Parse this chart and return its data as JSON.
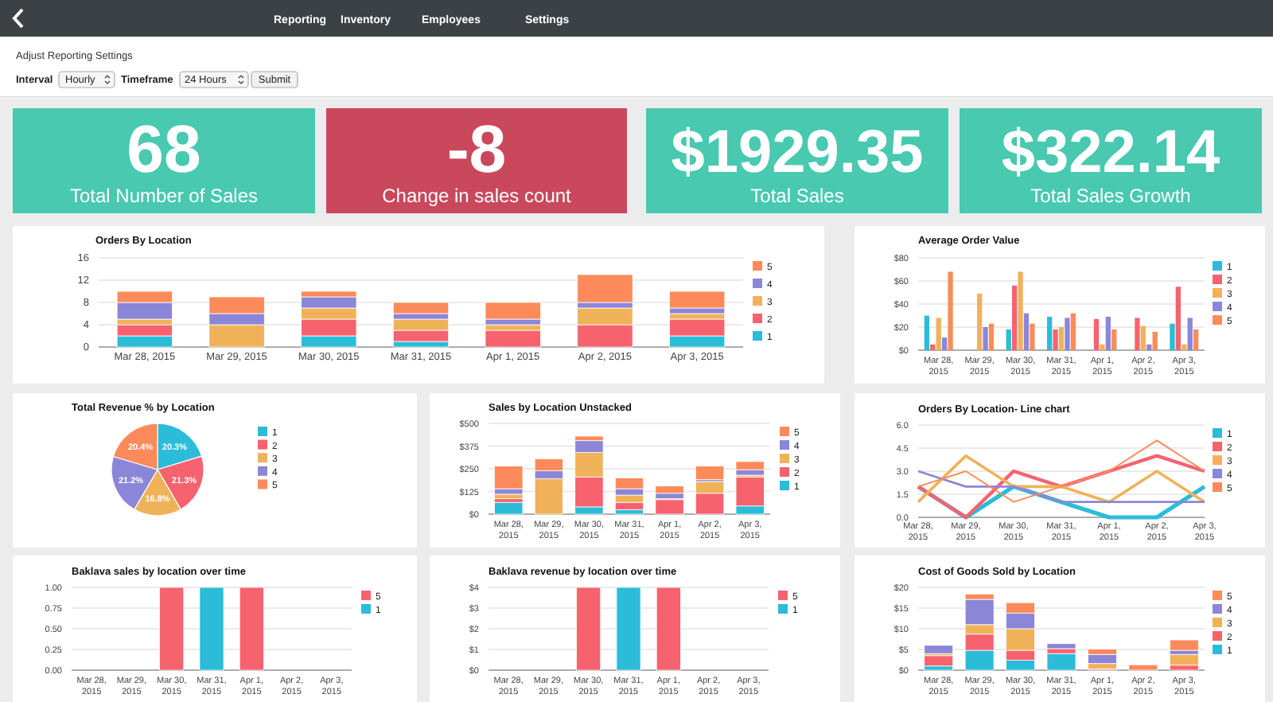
{
  "chart_data": [
    {
      "type": "other",
      "annotations": [
        "Reporting",
        "Inventory",
        "Employees",
        "Settings",
        "Adjust Reporting Settings",
        "Interval",
        "Hourly",
        "Timeframe",
        "24 Hours",
        "Submit"
      ]
    },
    {
      "type": "other",
      "title": "Total Number of Sales",
      "annotations": [
        "68"
      ],
      "color": "#48c9b0"
    },
    {
      "type": "other",
      "title": "Change in sales count",
      "annotations": [
        "-8"
      ],
      "color": "#c9485b"
    },
    {
      "type": "other",
      "title": "Total Sales",
      "annotations": [
        "$1929.35"
      ],
      "color": "#48c9b0"
    },
    {
      "type": "other",
      "title": "Total Sales Growth",
      "annotations": [
        "$322.14"
      ],
      "color": "#48c9b0"
    },
    {
      "type": "bar",
      "title": "Orders By Location",
      "stacked": true,
      "grid": "y",
      "legend": "right",
      "categories": [
        "Mar 28, 2015",
        "Mar 29, 2015",
        "Mar 30, 2015",
        "Mar 31, 2015",
        "Apr 1, 2015",
        "Apr 2, 2015",
        "Apr 3, 2015"
      ],
      "ylim": [
        0,
        16
      ],
      "yticks": [
        0,
        4,
        8,
        12,
        16
      ],
      "series": [
        {
          "name": "1",
          "color": "#2bbcd9",
          "values": [
            2,
            0,
            2,
            1,
            0,
            0,
            2
          ]
        },
        {
          "name": "2",
          "color": "#f7626f",
          "values": [
            2,
            0,
            3,
            2,
            3,
            4,
            3
          ]
        },
        {
          "name": "3",
          "color": "#f0b259",
          "values": [
            1,
            4,
            2,
            2,
            1,
            3,
            1
          ]
        },
        {
          "name": "4",
          "color": "#8c86d9",
          "values": [
            3,
            2,
            2,
            1,
            1,
            1,
            1
          ]
        },
        {
          "name": "5",
          "color": "#fd8a5a",
          "values": [
            2,
            3,
            1,
            2,
            3,
            5,
            3
          ]
        }
      ]
    },
    {
      "type": "bar",
      "title": "Average Order Value",
      "grid": "y",
      "legend": "right",
      "categories": [
        "Mar 28, 2015",
        "Mar 29, 2015",
        "Mar 30, 2015",
        "Mar 31, 2015",
        "Apr 1, 2015",
        "Apr 2, 2015",
        "Apr 3, 2015"
      ],
      "ylim": [
        0,
        80
      ],
      "yticks": [
        {
          "value": 0,
          "label": "$0"
        },
        {
          "value": 20,
          "label": "$20"
        },
        {
          "value": 40,
          "label": "$40"
        },
        {
          "value": 60,
          "label": "$60"
        },
        {
          "value": 80,
          "label": "$80"
        }
      ],
      "series": [
        {
          "name": "1",
          "color": "#2bbcd9",
          "values": [
            30,
            0,
            18,
            29,
            0,
            0,
            23
          ]
        },
        {
          "name": "2",
          "color": "#f7626f",
          "values": [
            5,
            0,
            56,
            18,
            27,
            28,
            55
          ]
        },
        {
          "name": "3",
          "color": "#f0b259",
          "values": [
            28,
            49,
            68,
            20,
            5,
            21,
            5
          ]
        },
        {
          "name": "4",
          "color": "#8c86d9",
          "values": [
            11,
            20,
            32,
            28,
            29,
            5,
            28
          ]
        },
        {
          "name": "5",
          "color": "#fd8a5a",
          "values": [
            68,
            23,
            23,
            32,
            18,
            16,
            18
          ]
        }
      ]
    },
    {
      "type": "pie",
      "title": "Total Revenue % by Location",
      "legend": "right",
      "categories": [
        "1",
        "2",
        "3",
        "4",
        "5"
      ],
      "values": [
        20.3,
        21.3,
        16.8,
        21.2,
        20.4
      ],
      "value_labels": [
        "20.3%",
        "21.3%",
        "16.8%",
        "21.2%",
        "20.4%"
      ],
      "colors": [
        "#2bbcd9",
        "#f7626f",
        "#f0b259",
        "#8c86d9",
        "#fd8a5a"
      ]
    },
    {
      "type": "bar",
      "title": "Sales by Location Unstacked",
      "stacked": true,
      "grid": "y",
      "legend": "right",
      "categories": [
        "Mar 28, 2015",
        "Mar 29, 2015",
        "Mar 30, 2015",
        "Mar 31, 2015",
        "Apr 1, 2015",
        "Apr 2, 2015",
        "Apr 3, 2015"
      ],
      "ylim": [
        0,
        500
      ],
      "yticks": [
        {
          "value": 0,
          "label": "$0"
        },
        {
          "value": 125,
          "label": "$125"
        },
        {
          "value": 250,
          "label": "$250"
        },
        {
          "value": 375,
          "label": "$375"
        },
        {
          "value": 500,
          "label": "$500"
        }
      ],
      "series": [
        {
          "name": "1",
          "color": "#2bbcd9",
          "values": [
            65,
            0,
            40,
            25,
            0,
            0,
            45
          ]
        },
        {
          "name": "2",
          "color": "#f7626f",
          "values": [
            20,
            0,
            165,
            40,
            80,
            115,
            160
          ]
        },
        {
          "name": "3",
          "color": "#f0b259",
          "values": [
            25,
            195,
            135,
            40,
            5,
            65,
            10
          ]
        },
        {
          "name": "4",
          "color": "#8c86d9",
          "values": [
            30,
            45,
            65,
            35,
            30,
            10,
            30
          ]
        },
        {
          "name": "5",
          "color": "#fd8a5a",
          "values": [
            125,
            65,
            25,
            60,
            40,
            75,
            45
          ]
        }
      ]
    },
    {
      "type": "line",
      "title": "Orders By Location- Line chart",
      "grid": "y",
      "legend": "right",
      "categories": [
        "Mar 28, 2015",
        "Mar 29, 2015",
        "Mar 30, 2015",
        "Mar 31, 2015",
        "Apr 1, 2015",
        "Apr 2, 2015",
        "Apr 3, 2015"
      ],
      "ylim": [
        0,
        6
      ],
      "yticks": [
        {
          "value": 0,
          "label": "0.0"
        },
        1.5,
        {
          "value": 3,
          "label": "3.0"
        },
        4.5,
        {
          "value": 6,
          "label": "6.0"
        }
      ],
      "series": [
        {
          "name": "1",
          "color": "#2bbcd9",
          "values": [
            2,
            0,
            2,
            1,
            0,
            0,
            2
          ]
        },
        {
          "name": "2",
          "color": "#f7626f",
          "values": [
            2,
            0,
            3,
            2,
            3,
            4,
            3
          ]
        },
        {
          "name": "3",
          "color": "#f0b259",
          "values": [
            1,
            4,
            2,
            2,
            1,
            3,
            1
          ]
        },
        {
          "name": "4",
          "color": "#8c86d9",
          "values": [
            3,
            2,
            2,
            1,
            1,
            1,
            1
          ]
        },
        {
          "name": "5",
          "color": "#fd8a5a",
          "values": [
            2,
            3,
            1,
            2,
            3,
            5,
            3
          ]
        }
      ]
    },
    {
      "type": "bar",
      "title": "Baklava sales by location over time",
      "stacked": true,
      "grid": "y",
      "legend": "right",
      "categories": [
        "Mar 28, 2015",
        "Mar 29, 2015",
        "Mar 30, 2015",
        "Mar 31, 2015",
        "Apr 1, 2015",
        "Apr 2, 2015",
        "Apr 3, 2015"
      ],
      "ylim": [
        0,
        1
      ],
      "yticks": [
        {
          "value": 0,
          "label": "0.00"
        },
        {
          "value": 0.25,
          "label": "0.25"
        },
        {
          "value": 0.5,
          "label": "0.50"
        },
        {
          "value": 0.75,
          "label": "0.75"
        },
        {
          "value": 1,
          "label": "1.00"
        }
      ],
      "series": [
        {
          "name": "1",
          "color": "#2bbcd9",
          "values": [
            0,
            0,
            0,
            1,
            0,
            0,
            0
          ]
        },
        {
          "name": "5",
          "color": "#f7626f",
          "values": [
            0,
            0,
            1,
            0,
            1,
            0,
            0
          ]
        }
      ]
    },
    {
      "type": "bar",
      "title": "Baklava revenue by location over time",
      "stacked": true,
      "grid": "y",
      "legend": "right",
      "categories": [
        "Mar 28, 2015",
        "Mar 29, 2015",
        "Mar 30, 2015",
        "Mar 31, 2015",
        "Apr 1, 2015",
        "Apr 2, 2015",
        "Apr 3, 2015"
      ],
      "ylim": [
        0,
        4
      ],
      "yticks": [
        {
          "value": 0,
          "label": "$0"
        },
        {
          "value": 1,
          "label": "$1"
        },
        {
          "value": 2,
          "label": "$2"
        },
        {
          "value": 3,
          "label": "$3"
        },
        {
          "value": 4,
          "label": "$4"
        }
      ],
      "series": [
        {
          "name": "1",
          "color": "#2bbcd9",
          "values": [
            0,
            0,
            0,
            4,
            0,
            0,
            0
          ]
        },
        {
          "name": "5",
          "color": "#f7626f",
          "values": [
            0,
            0,
            4,
            0,
            4,
            0,
            0
          ]
        }
      ]
    },
    {
      "type": "bar",
      "title": "Cost of Goods Sold by Location",
      "stacked": true,
      "grid": "y",
      "legend": "right",
      "categories": [
        "Mar 28, 2015",
        "Mar 29, 2015",
        "Mar 30, 2015",
        "Mar 31, 2015",
        "Apr 1, 2015",
        "Apr 2, 2015",
        "Apr 3, 2015"
      ],
      "ylim": [
        0,
        20
      ],
      "yticks": [
        {
          "value": 0,
          "label": "$0"
        },
        {
          "value": 5,
          "label": "$5"
        },
        {
          "value": 10,
          "label": "$10"
        },
        {
          "value": 15,
          "label": "$15"
        },
        {
          "value": 20,
          "label": "$20"
        }
      ],
      "series": [
        {
          "name": "1",
          "color": "#2bbcd9",
          "values": [
            1,
            4.8,
            2.4,
            4,
            0,
            0,
            0
          ]
        },
        {
          "name": "2",
          "color": "#f7626f",
          "values": [
            2.5,
            3.9,
            2.4,
            1.2,
            0.3,
            0,
            1.2
          ]
        },
        {
          "name": "3",
          "color": "#f0b259",
          "values": [
            0.5,
            2.3,
            5.2,
            0,
            1.3,
            0,
            2.6
          ]
        },
        {
          "name": "4",
          "color": "#8c86d9",
          "values": [
            2,
            6.1,
            3.8,
            1.2,
            2.2,
            0,
            1
          ]
        },
        {
          "name": "5",
          "color": "#fd8a5a",
          "values": [
            0,
            1.3,
            2.5,
            0,
            1.3,
            1.3,
            2.5
          ]
        }
      ]
    }
  ]
}
